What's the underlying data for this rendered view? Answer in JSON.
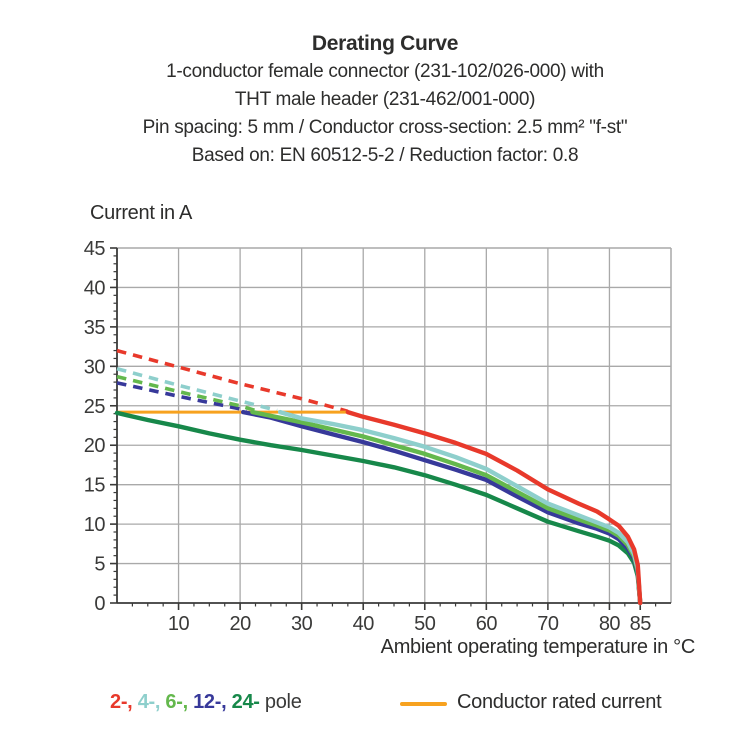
{
  "title": {
    "line1": "Derating Curve",
    "line2": "1-conductor female connector (231-102/026-000) with",
    "line3": "THT male header (231-462/001-000)",
    "line4": "Pin spacing: 5 mm / Conductor cross-section: 2.5 mm² \"f-st\"",
    "line5": "Based on: EN 60512-5-2 / Reduction factor: 0.8"
  },
  "chart_data": {
    "type": "line",
    "title": "Derating Curve",
    "ylabel": "Current in A",
    "xlabel": "Ambient operating temperature in °C",
    "xlim": [
      0,
      90
    ],
    "ylim": [
      0,
      45
    ],
    "grid": {
      "on": true,
      "x_lines": [
        10,
        20,
        30,
        40,
        50,
        60,
        70,
        80
      ],
      "y_lines": [
        5,
        10,
        15,
        20,
        25,
        30,
        35,
        40
      ]
    },
    "x_major_ticks": [
      10,
      20,
      30,
      40,
      50,
      60,
      70,
      80,
      85
    ],
    "x_tick_labels": [
      "10",
      "20",
      "30",
      "40",
      "50",
      "60",
      "70",
      "80",
      "85"
    ],
    "x_minor_step": 2.5,
    "y_major_ticks": [
      0,
      5,
      10,
      15,
      20,
      25,
      30,
      35,
      40,
      45
    ],
    "y_tick_labels": [
      "0",
      "5",
      "10",
      "15",
      "20",
      "25",
      "30",
      "35",
      "40",
      "45"
    ],
    "y_minor_step": 1,
    "colors": {
      "grid": "#a9a9a9",
      "axis": "#3a3a39",
      "text": "#3a3a39"
    },
    "rated_current": {
      "label": "Conductor rated current",
      "color": "#f7a21f",
      "value_a": 24.2,
      "x_start": 0,
      "x_end": 37.5
    },
    "series": [
      {
        "name": "24-pole",
        "color": "#17884a",
        "dashed": [],
        "solid": [
          [
            0,
            24.1
          ],
          [
            5,
            23.2
          ],
          [
            10,
            22.4
          ],
          [
            15,
            21.5
          ],
          [
            20,
            20.7
          ],
          [
            25,
            20.0
          ],
          [
            30,
            19.4
          ],
          [
            35,
            18.7
          ],
          [
            40,
            18.0
          ],
          [
            45,
            17.2
          ],
          [
            50,
            16.2
          ],
          [
            55,
            15.0
          ],
          [
            60,
            13.7
          ],
          [
            65,
            12.0
          ],
          [
            70,
            10.3
          ],
          [
            75,
            9.1
          ],
          [
            78,
            8.4
          ],
          [
            80,
            7.9
          ],
          [
            81.5,
            7.3
          ],
          [
            83,
            6.3
          ],
          [
            84,
            5.1
          ],
          [
            84.6,
            3.4
          ],
          [
            85,
            0
          ]
        ]
      },
      {
        "name": "12-pole",
        "color": "#37399a",
        "dashed": [
          [
            0,
            27.9
          ],
          [
            10,
            26.2
          ],
          [
            20,
            24.6
          ],
          [
            21,
            24.3
          ]
        ],
        "solid": [
          [
            20.5,
            24.2
          ],
          [
            25,
            23.5
          ],
          [
            30,
            22.4
          ],
          [
            35,
            21.4
          ],
          [
            40,
            20.4
          ],
          [
            45,
            19.3
          ],
          [
            50,
            18.1
          ],
          [
            55,
            16.9
          ],
          [
            60,
            15.6
          ],
          [
            65,
            13.5
          ],
          [
            70,
            11.5
          ],
          [
            75,
            10.1
          ],
          [
            78,
            9.4
          ],
          [
            80,
            8.8
          ],
          [
            81.5,
            8.1
          ],
          [
            83,
            6.9
          ],
          [
            84,
            5.6
          ],
          [
            84.6,
            3.8
          ],
          [
            85,
            0
          ]
        ]
      },
      {
        "name": "6-pole",
        "color": "#64b84d",
        "dashed": [
          [
            0,
            28.7
          ],
          [
            10,
            26.8
          ],
          [
            20,
            25.0
          ],
          [
            22.5,
            24.4
          ]
        ],
        "solid": [
          [
            22,
            24.2
          ],
          [
            30,
            22.9
          ],
          [
            35,
            22.0
          ],
          [
            40,
            21.1
          ],
          [
            45,
            20.0
          ],
          [
            50,
            18.9
          ],
          [
            55,
            17.6
          ],
          [
            60,
            16.2
          ],
          [
            65,
            14.1
          ],
          [
            70,
            12.0
          ],
          [
            75,
            10.6
          ],
          [
            78,
            9.8
          ],
          [
            80,
            9.2
          ],
          [
            81.5,
            8.5
          ],
          [
            83,
            7.3
          ],
          [
            84,
            5.9
          ],
          [
            84.6,
            4.0
          ],
          [
            85,
            0
          ]
        ]
      },
      {
        "name": "4-pole",
        "color": "#8ecfcc",
        "dashed": [
          [
            0,
            29.7
          ],
          [
            10,
            27.6
          ],
          [
            20,
            25.6
          ],
          [
            26,
            24.4
          ]
        ],
        "solid": [
          [
            26.5,
            24.2
          ],
          [
            30,
            23.4
          ],
          [
            35,
            22.7
          ],
          [
            40,
            21.9
          ],
          [
            45,
            20.9
          ],
          [
            50,
            19.8
          ],
          [
            55,
            18.5
          ],
          [
            60,
            17.0
          ],
          [
            65,
            14.8
          ],
          [
            70,
            12.6
          ],
          [
            75,
            11.1
          ],
          [
            78,
            10.2
          ],
          [
            80,
            9.6
          ],
          [
            81.5,
            8.9
          ],
          [
            83,
            7.7
          ],
          [
            84,
            6.2
          ],
          [
            84.6,
            4.3
          ],
          [
            85,
            0
          ]
        ]
      },
      {
        "name": "2-pole",
        "color": "#e8392b",
        "dashed": [
          [
            0,
            32
          ],
          [
            10,
            29.9
          ],
          [
            20,
            27.8
          ],
          [
            30,
            25.9
          ],
          [
            37.5,
            24.3
          ]
        ],
        "solid": [
          [
            37.5,
            24.2
          ],
          [
            40,
            23.6
          ],
          [
            45,
            22.6
          ],
          [
            50,
            21.5
          ],
          [
            55,
            20.3
          ],
          [
            60,
            18.9
          ],
          [
            65,
            16.8
          ],
          [
            70,
            14.4
          ],
          [
            75,
            12.6
          ],
          [
            78,
            11.6
          ],
          [
            80,
            10.6
          ],
          [
            81.5,
            9.8
          ],
          [
            83,
            8.4
          ],
          [
            84,
            6.8
          ],
          [
            84.6,
            4.8
          ],
          [
            85,
            0
          ]
        ]
      }
    ]
  },
  "legend": {
    "poles": [
      {
        "label": "2-,",
        "color": "#e8392b"
      },
      {
        "label": "4-,",
        "color": "#8ecfcc"
      },
      {
        "label": "6-,",
        "color": "#64b84d"
      },
      {
        "label": "12-,",
        "color": "#37399a"
      },
      {
        "label": "24-",
        "color": "#17884a"
      }
    ],
    "pole_suffix": "pole",
    "rated_label": "Conductor rated current",
    "rated_color": "#f7a21f"
  }
}
